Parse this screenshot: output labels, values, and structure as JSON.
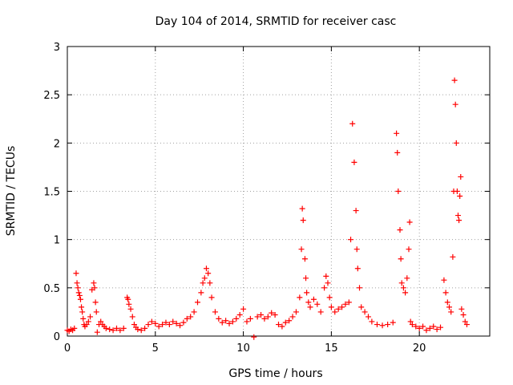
{
  "chart_data": {
    "type": "scatter",
    "title": "Day 104 of 2014, SRMTID for receiver casc",
    "xlabel": "GPS time / hours",
    "ylabel": "SRMTID / TECUs",
    "xlim": [
      0,
      24
    ],
    "ylim": [
      0,
      3
    ],
    "x_ticks": [
      0,
      5,
      10,
      15,
      20
    ],
    "x_tick_labels": [
      "0",
      "5",
      "10",
      "15",
      "20"
    ],
    "y_ticks": [
      0,
      0.5,
      1,
      1.5,
      2,
      2.5,
      3
    ],
    "y_tick_labels": [
      "0",
      "0.5",
      "1",
      "1.5",
      "2",
      "2.5",
      "3"
    ],
    "grid": true,
    "marker": "+",
    "color": "#ff0000",
    "series": [
      {
        "name": "SRMTID",
        "points": [
          [
            0.0,
            0.06
          ],
          [
            0.1,
            0.05
          ],
          [
            0.2,
            0.07
          ],
          [
            0.3,
            0.06
          ],
          [
            0.4,
            0.08
          ],
          [
            0.5,
            0.65
          ],
          [
            0.55,
            0.55
          ],
          [
            0.6,
            0.5
          ],
          [
            0.65,
            0.45
          ],
          [
            0.7,
            0.42
          ],
          [
            0.75,
            0.38
          ],
          [
            0.8,
            0.3
          ],
          [
            0.85,
            0.25
          ],
          [
            0.9,
            0.18
          ],
          [
            0.95,
            0.12
          ],
          [
            1.0,
            0.1
          ],
          [
            1.1,
            0.12
          ],
          [
            1.2,
            0.15
          ],
          [
            1.3,
            0.2
          ],
          [
            1.4,
            0.48
          ],
          [
            1.5,
            0.55
          ],
          [
            1.55,
            0.5
          ],
          [
            1.6,
            0.35
          ],
          [
            1.65,
            0.25
          ],
          [
            1.7,
            0.04
          ],
          [
            1.8,
            0.12
          ],
          [
            1.9,
            0.15
          ],
          [
            2.0,
            0.12
          ],
          [
            2.1,
            0.1
          ],
          [
            2.2,
            0.08
          ],
          [
            2.4,
            0.07
          ],
          [
            2.6,
            0.06
          ],
          [
            2.8,
            0.08
          ],
          [
            3.0,
            0.06
          ],
          [
            3.2,
            0.08
          ],
          [
            3.4,
            0.4
          ],
          [
            3.45,
            0.38
          ],
          [
            3.5,
            0.33
          ],
          [
            3.6,
            0.28
          ],
          [
            3.7,
            0.2
          ],
          [
            3.8,
            0.12
          ],
          [
            3.9,
            0.09
          ],
          [
            4.0,
            0.07
          ],
          [
            4.2,
            0.06
          ],
          [
            4.4,
            0.08
          ],
          [
            4.6,
            0.12
          ],
          [
            4.8,
            0.15
          ],
          [
            5.0,
            0.13
          ],
          [
            5.2,
            0.1
          ],
          [
            5.4,
            0.12
          ],
          [
            5.6,
            0.14
          ],
          [
            5.8,
            0.12
          ],
          [
            6.0,
            0.15
          ],
          [
            6.2,
            0.13
          ],
          [
            6.4,
            0.11
          ],
          [
            6.6,
            0.14
          ],
          [
            6.8,
            0.18
          ],
          [
            7.0,
            0.2
          ],
          [
            7.2,
            0.25
          ],
          [
            7.4,
            0.35
          ],
          [
            7.6,
            0.45
          ],
          [
            7.7,
            0.55
          ],
          [
            7.8,
            0.6
          ],
          [
            7.9,
            0.7
          ],
          [
            8.0,
            0.65
          ],
          [
            8.1,
            0.55
          ],
          [
            8.2,
            0.4
          ],
          [
            8.4,
            0.25
          ],
          [
            8.6,
            0.18
          ],
          [
            8.8,
            0.14
          ],
          [
            9.0,
            0.16
          ],
          [
            9.2,
            0.13
          ],
          [
            9.4,
            0.15
          ],
          [
            9.6,
            0.18
          ],
          [
            9.8,
            0.22
          ],
          [
            10.0,
            0.28
          ],
          [
            10.2,
            0.15
          ],
          [
            10.4,
            0.18
          ],
          [
            10.6,
            -0.01
          ],
          [
            10.8,
            0.2
          ],
          [
            11.0,
            0.22
          ],
          [
            11.2,
            0.18
          ],
          [
            11.4,
            0.2
          ],
          [
            11.6,
            0.24
          ],
          [
            11.8,
            0.22
          ],
          [
            12.0,
            0.12
          ],
          [
            12.2,
            0.1
          ],
          [
            12.4,
            0.14
          ],
          [
            12.6,
            0.16
          ],
          [
            12.8,
            0.2
          ],
          [
            13.0,
            0.25
          ],
          [
            13.2,
            0.4
          ],
          [
            13.3,
            0.9
          ],
          [
            13.35,
            1.32
          ],
          [
            13.4,
            1.2
          ],
          [
            13.5,
            0.8
          ],
          [
            13.55,
            0.6
          ],
          [
            13.6,
            0.45
          ],
          [
            13.7,
            0.35
          ],
          [
            13.8,
            0.3
          ],
          [
            14.0,
            0.38
          ],
          [
            14.2,
            0.33
          ],
          [
            14.4,
            0.25
          ],
          [
            14.6,
            0.5
          ],
          [
            14.7,
            0.62
          ],
          [
            14.8,
            0.55
          ],
          [
            14.9,
            0.4
          ],
          [
            15.0,
            0.3
          ],
          [
            15.2,
            0.25
          ],
          [
            15.4,
            0.28
          ],
          [
            15.6,
            0.3
          ],
          [
            15.8,
            0.33
          ],
          [
            16.0,
            0.35
          ],
          [
            16.1,
            1.0
          ],
          [
            16.2,
            2.2
          ],
          [
            16.3,
            1.8
          ],
          [
            16.4,
            1.3
          ],
          [
            16.45,
            0.9
          ],
          [
            16.5,
            0.7
          ],
          [
            16.6,
            0.5
          ],
          [
            16.7,
            0.3
          ],
          [
            16.9,
            0.25
          ],
          [
            17.1,
            0.2
          ],
          [
            17.3,
            0.15
          ],
          [
            17.6,
            0.12
          ],
          [
            17.9,
            0.11
          ],
          [
            18.2,
            0.12
          ],
          [
            18.5,
            0.14
          ],
          [
            18.7,
            2.1
          ],
          [
            18.75,
            1.9
          ],
          [
            18.8,
            1.5
          ],
          [
            18.9,
            1.1
          ],
          [
            18.95,
            0.8
          ],
          [
            19.0,
            0.55
          ],
          [
            19.1,
            0.5
          ],
          [
            19.2,
            0.45
          ],
          [
            19.3,
            0.6
          ],
          [
            19.4,
            0.9
          ],
          [
            19.45,
            1.18
          ],
          [
            19.5,
            0.15
          ],
          [
            19.6,
            0.12
          ],
          [
            19.8,
            0.1
          ],
          [
            20.0,
            0.08
          ],
          [
            20.2,
            0.1
          ],
          [
            20.4,
            0.06
          ],
          [
            20.6,
            0.08
          ],
          [
            20.8,
            0.1
          ],
          [
            21.0,
            0.07
          ],
          [
            21.2,
            0.09
          ],
          [
            21.4,
            0.58
          ],
          [
            21.5,
            0.45
          ],
          [
            21.6,
            0.35
          ],
          [
            21.7,
            0.3
          ],
          [
            21.8,
            0.25
          ],
          [
            21.9,
            0.82
          ],
          [
            21.95,
            1.5
          ],
          [
            22.0,
            2.65
          ],
          [
            22.05,
            2.4
          ],
          [
            22.1,
            2.0
          ],
          [
            22.15,
            1.5
          ],
          [
            22.2,
            1.25
          ],
          [
            22.25,
            1.2
          ],
          [
            22.3,
            1.45
          ],
          [
            22.35,
            1.65
          ],
          [
            22.4,
            0.28
          ],
          [
            22.5,
            0.22
          ],
          [
            22.6,
            0.15
          ],
          [
            22.7,
            0.12
          ]
        ]
      }
    ]
  }
}
